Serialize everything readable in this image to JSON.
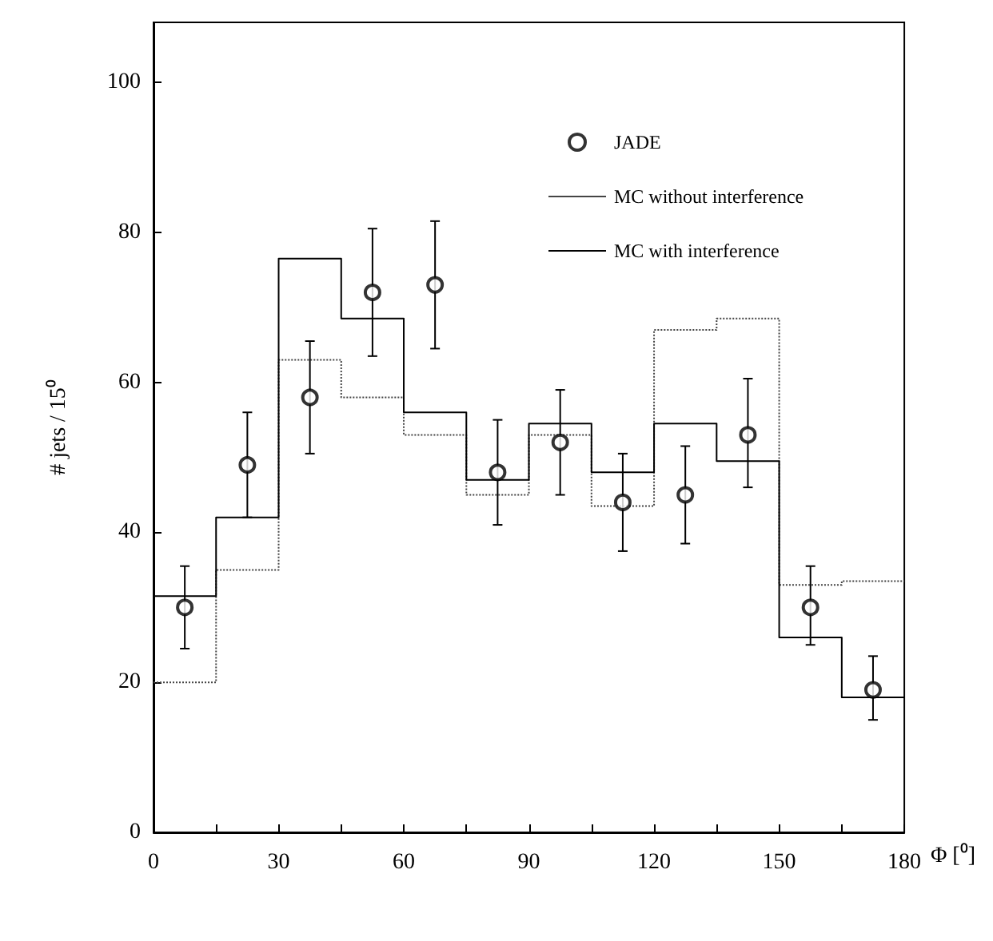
{
  "chart_data": {
    "type": "histogram",
    "xlabel": "Φ [⁰]",
    "ylabel": "# jets / 15⁰",
    "bins": [
      0,
      15,
      30,
      45,
      60,
      75,
      90,
      105,
      120,
      135,
      150,
      165,
      180
    ],
    "series": [
      {
        "name": "JADE",
        "type": "scatter",
        "color": "#000000",
        "marker": "circle",
        "x": [
          7.5,
          22.5,
          37.5,
          52.5,
          67.5,
          82.5,
          97.5,
          112.5,
          127.5,
          142.5,
          157.5,
          172.5
        ],
        "values": [
          30,
          49,
          58,
          72,
          73,
          48,
          52,
          44,
          45,
          53,
          30,
          19
        ],
        "errors": [
          [
            24.5,
            35.5
          ],
          [
            42,
            56
          ],
          [
            50.5,
            65.5
          ],
          [
            63.5,
            80.5
          ],
          [
            64.5,
            81.5
          ],
          [
            41,
            55
          ],
          [
            45,
            59
          ],
          [
            37.5,
            50.5
          ],
          [
            38.5,
            51.5
          ],
          [
            46,
            60.5
          ],
          [
            25,
            35.5
          ],
          [
            15,
            23.5
          ]
        ]
      },
      {
        "name": "MC without interference",
        "color": "#444444",
        "line_style": "dotted",
        "values": [
          20,
          35,
          63,
          58,
          53,
          45,
          53,
          43.5,
          67,
          68.5,
          33,
          33.5
        ]
      },
      {
        "name": "MC with interference",
        "color": "#000000",
        "line_style": "solid",
        "values": [
          31.5,
          42,
          76.5,
          68.5,
          56,
          47,
          54.5,
          48,
          54.5,
          49.5,
          26,
          18
        ]
      }
    ],
    "xlim": [
      0,
      180
    ],
    "xticks": [
      0,
      {
        "value": 15,
        "label": null
      },
      30,
      {
        "value": 45,
        "label": null
      },
      60,
      {
        "value": 75,
        "label": null
      },
      90,
      {
        "value": 105,
        "label": null
      },
      120,
      {
        "value": 135,
        "label": null
      },
      150,
      {
        "value": 165,
        "label": null
      },
      180
    ],
    "ylim": [
      0,
      108
    ],
    "yticks": [
      0,
      20,
      40,
      60,
      80,
      100
    ],
    "grid": false,
    "legend": "top right"
  }
}
